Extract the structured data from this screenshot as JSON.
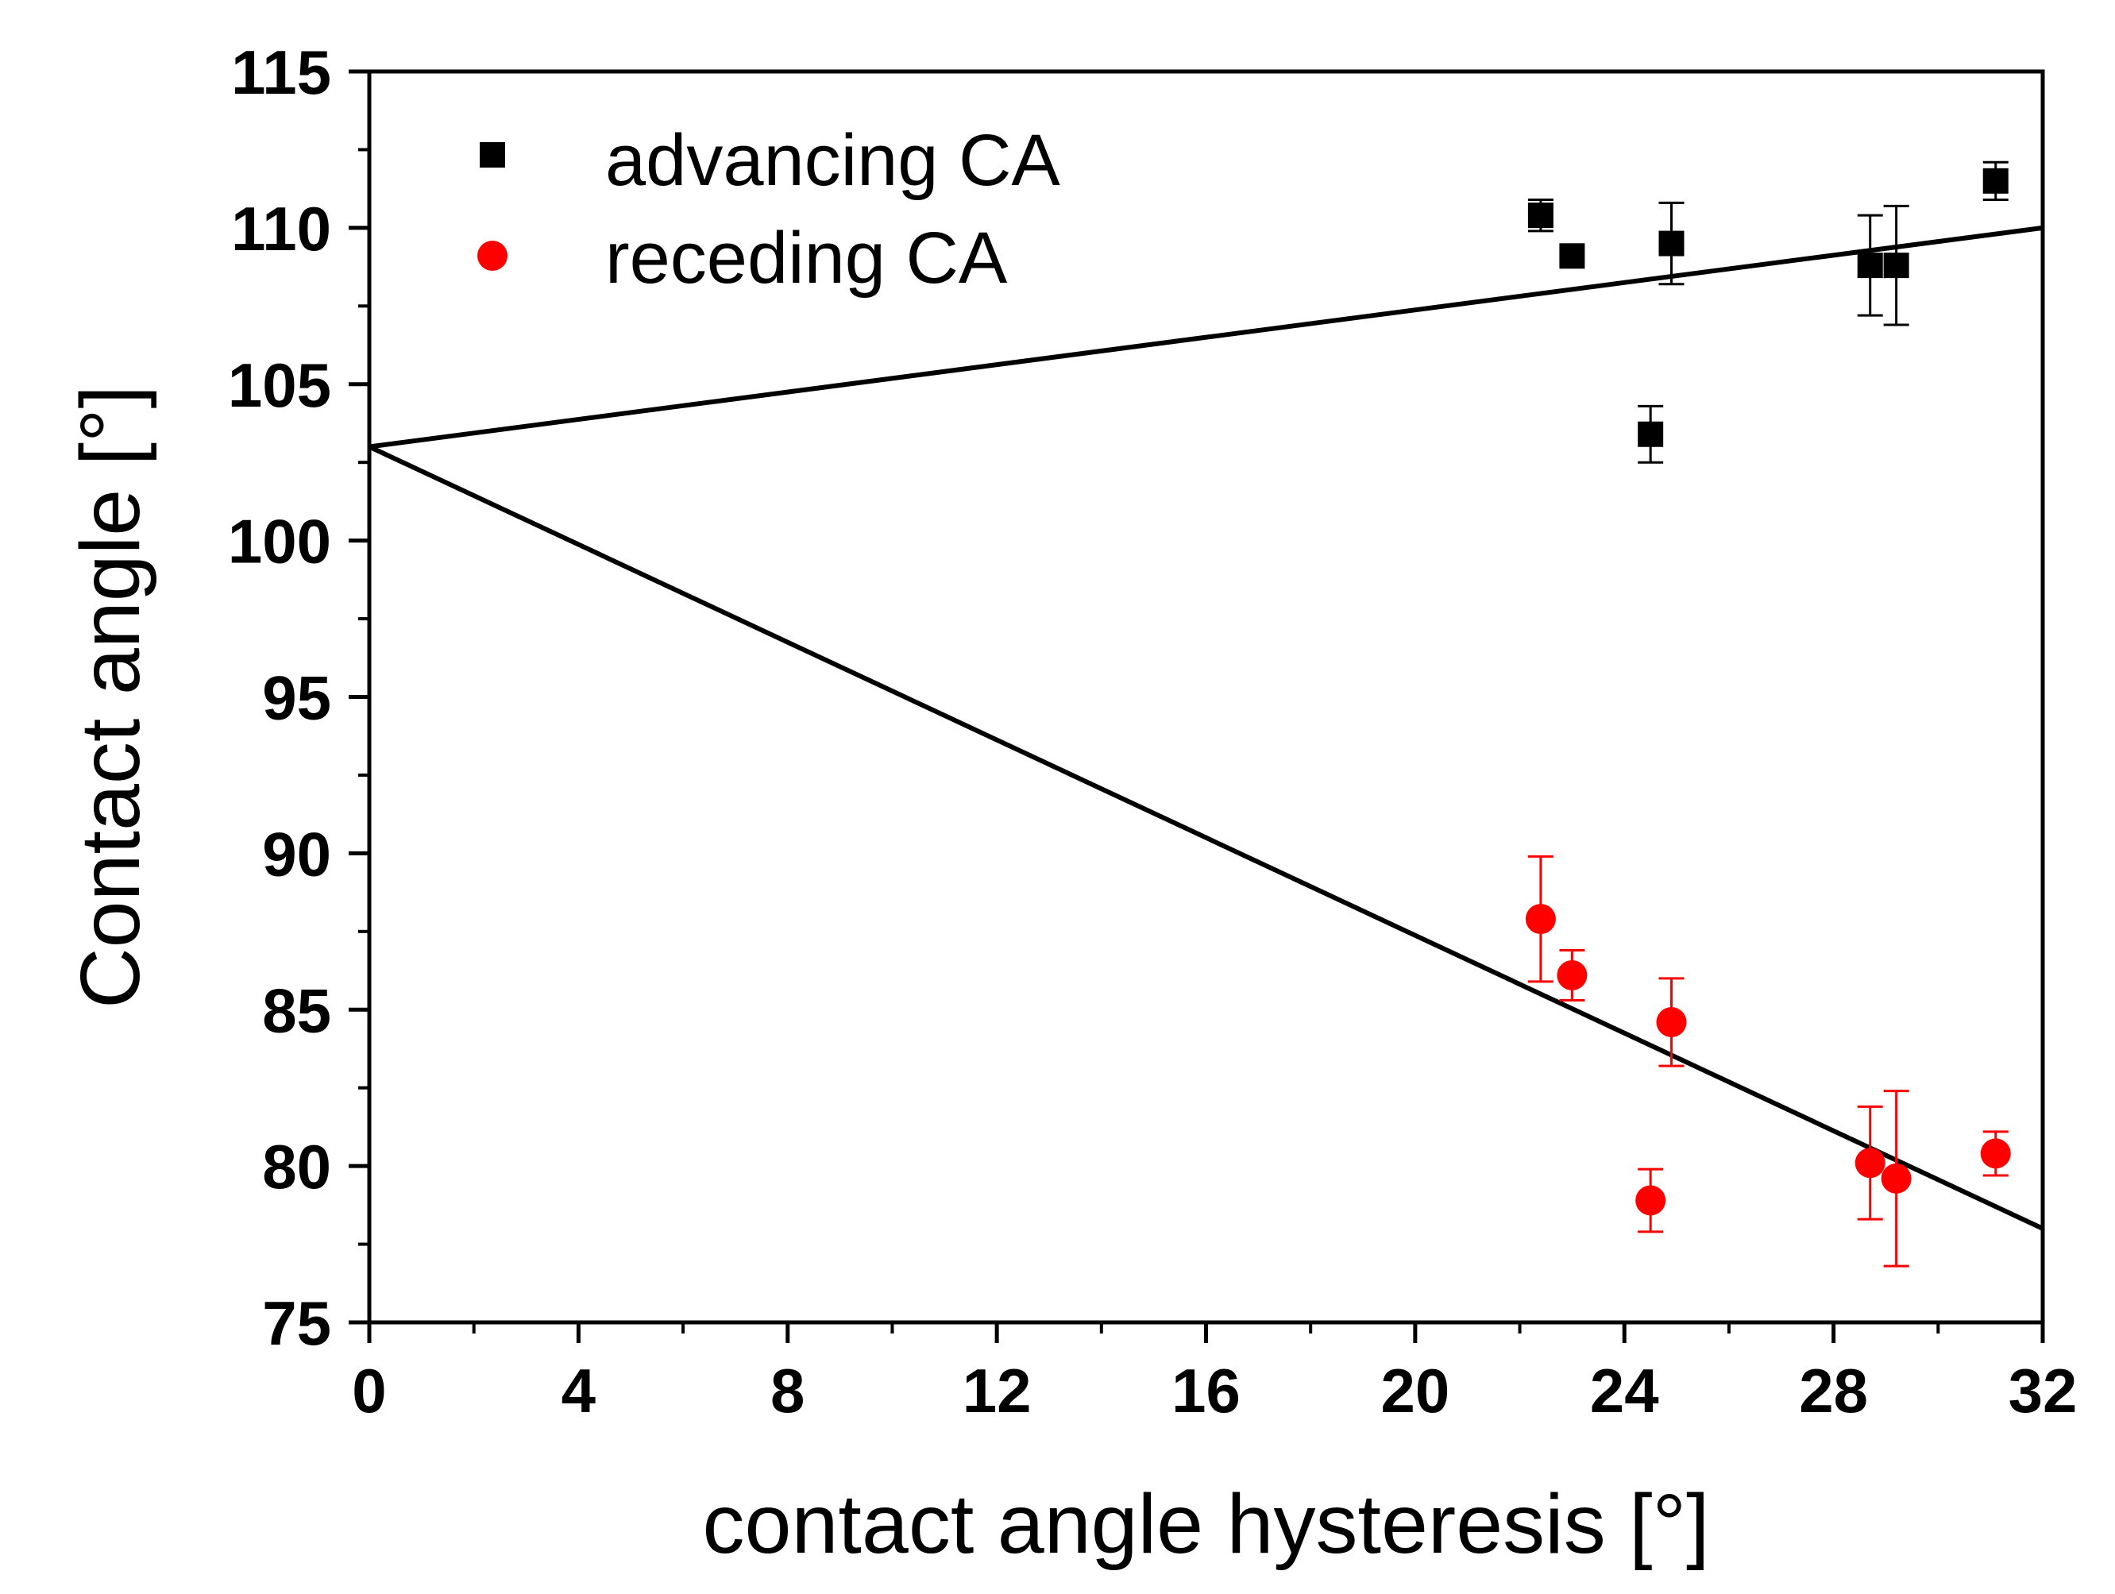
{
  "chart_data": {
    "type": "scatter",
    "xlabel": "contact angle hysteresis [°]",
    "ylabel": "Contact angle [°]",
    "xlim": [
      0,
      32
    ],
    "ylim": [
      75,
      115
    ],
    "x_major_ticks": [
      0,
      4,
      8,
      12,
      16,
      20,
      24,
      28,
      32
    ],
    "x_tick_labels": [
      "0",
      "4",
      "8",
      "12",
      "16",
      "20",
      "24",
      "28",
      "32"
    ],
    "y_major_ticks": [
      75,
      80,
      85,
      90,
      95,
      100,
      105,
      110,
      115
    ],
    "y_tick_labels": [
      "75",
      "80",
      "85",
      "90",
      "95",
      "100",
      "105",
      "110",
      "115"
    ],
    "x_minor_step": 2,
    "y_minor_step": 2.5,
    "grid": false,
    "legend_position": "top-left",
    "series": [
      {
        "name": "advancing CA",
        "marker": "square",
        "color": "#000000",
        "points": [
          {
            "x": 22.4,
            "y": 110.4,
            "err": 0.5
          },
          {
            "x": 23.0,
            "y": 109.1,
            "err": 0
          },
          {
            "x": 24.5,
            "y": 103.4,
            "err": 0.9
          },
          {
            "x": 24.9,
            "y": 109.5,
            "err": 1.3
          },
          {
            "x": 28.7,
            "y": 108.8,
            "err": 1.6
          },
          {
            "x": 29.2,
            "y": 108.8,
            "err": 1.9
          },
          {
            "x": 31.1,
            "y": 111.5,
            "err": 0.6
          }
        ]
      },
      {
        "name": "receding CA",
        "marker": "circle",
        "color": "#ff0000",
        "points": [
          {
            "x": 22.4,
            "y": 87.9,
            "err": 2.0
          },
          {
            "x": 23.0,
            "y": 86.1,
            "err": 0.8
          },
          {
            "x": 24.5,
            "y": 78.9,
            "err": 1.0
          },
          {
            "x": 24.9,
            "y": 84.6,
            "err": 1.4
          },
          {
            "x": 28.7,
            "y": 80.1,
            "err": 1.8
          },
          {
            "x": 29.2,
            "y": 79.6,
            "err": 2.8
          },
          {
            "x": 31.1,
            "y": 80.4,
            "err": 0.7
          }
        ]
      }
    ],
    "lines": [
      {
        "name": "advancing-trend",
        "x": [
          0,
          32
        ],
        "y": [
          103.0,
          110.0
        ],
        "color": "#000000"
      },
      {
        "name": "receding-trend",
        "x": [
          0,
          32
        ],
        "y": [
          103.0,
          78.0
        ],
        "color": "#000000"
      }
    ]
  }
}
